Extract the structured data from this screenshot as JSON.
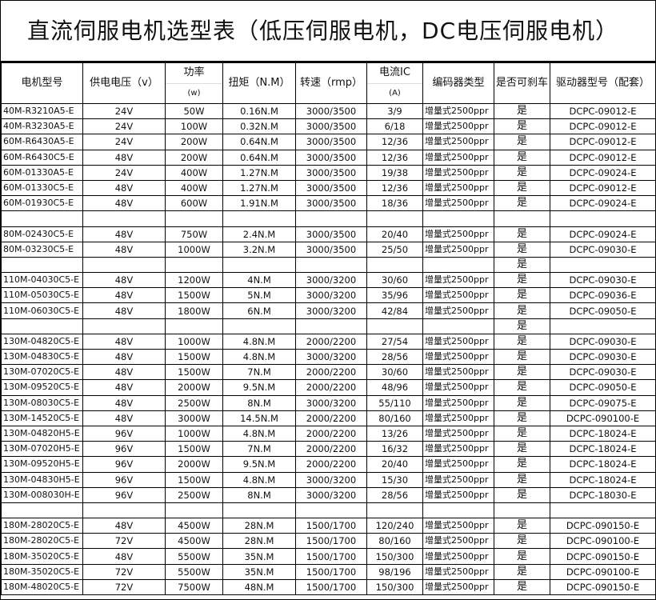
{
  "title": "直流伺服电机选型表（低压伺服电机，DC电压伺服电机）",
  "headers": {
    "model": "电机型号",
    "voltage": "供电电压（v）",
    "power": "功率",
    "power_unit": "(w)",
    "torque": "扭矩（N.M）",
    "speed": "转速（rmp）",
    "current": "电流IC",
    "current_unit": "(A)",
    "encoder": "编码器类型",
    "brake": "是否可刹车",
    "driver": "驱动器型号（配套）"
  },
  "rows": [
    [
      "40M-R3210A5-E",
      "24V",
      "50W",
      "0.16N.M",
      "3000/3500",
      "3/9",
      "增量式2500ppr",
      "是",
      "DCPC-09012-E"
    ],
    [
      "40M-R3230A5-E",
      "24V",
      "100W",
      "0.32N.M",
      "3000/3500",
      "6/18",
      "增量式2500ppr",
      "是",
      "DCPC-09012-E"
    ],
    [
      "60M-R6430A5-E",
      "24V",
      "200W",
      "0.64N.M",
      "3000/3500",
      "12/36",
      "增量式2500ppr",
      "是",
      "DCPC-09012-E"
    ],
    [
      "60M-R6430C5-E",
      "48V",
      "200W",
      "0.64N.M",
      "3000/3500",
      "12/36",
      "增量式2500ppr",
      "是",
      "DCPC-09012-E"
    ],
    [
      "60M-01330A5-E",
      "24V",
      "400W",
      "1.27N.M",
      "3000/3500",
      "19/38",
      "增量式2500ppr",
      "是",
      "DCPC-09024-E"
    ],
    [
      "60M-01330C5-E",
      "48V",
      "400W",
      "1.27N.M",
      "3000/3500",
      "12/36",
      "增量式2500ppr",
      "是",
      "DCPC-09012-E"
    ],
    [
      "60M-01930C5-E",
      "48V",
      "600W",
      "1.91N.M",
      "3000/3500",
      "18/36",
      "增量式2500ppr",
      "是",
      "DCPC-09024-E"
    ],
    [
      "",
      "",
      "",
      "",
      "",
      "",
      "",
      "",
      ""
    ],
    [
      "80M-02430C5-E",
      "48V",
      "750W",
      "2.4N.M",
      "3000/3500",
      "20/40",
      "增量式2500ppr",
      "是",
      "DCPC-09024-E"
    ],
    [
      "80M-03230C5-E",
      "48V",
      "1000W",
      "3.2N.M",
      "3000/3500",
      "25/50",
      "增量式2500ppr",
      "是",
      "DCPC-09030-E"
    ],
    [
      "",
      "",
      "",
      "",
      "",
      "",
      "",
      "是",
      ""
    ],
    [
      "110M-04030C5-E",
      "48V",
      "1200W",
      "4N.M",
      "3000/3200",
      "30/60",
      "增量式2500ppr",
      "是",
      "DCPC-09030-E"
    ],
    [
      "110M-05030C5-E",
      "48V",
      "1500W",
      "5N.M",
      "3000/3200",
      "35/96",
      "增量式2500ppr",
      "是",
      "DCPC-09036-E"
    ],
    [
      "110M-06030C5-E",
      "48V",
      "1800W",
      "6N.M",
      "3000/3200",
      "42/84",
      "增量式2500ppr",
      "是",
      "DCPC-09050-E"
    ],
    [
      "",
      "",
      "",
      "",
      "",
      "",
      "",
      "是",
      ""
    ],
    [
      "130M-04820C5-E",
      "48V",
      "1000W",
      "4.8N.M",
      "2000/2200",
      "27/54",
      "增量式2500ppr",
      "是",
      "DCPC-09030-E"
    ],
    [
      "130M-04830C5-E",
      "48V",
      "1500W",
      "4.8N.M",
      "3000/3200",
      "28/56",
      "增量式2500ppr",
      "是",
      "DCPC-09030-E"
    ],
    [
      "130M-07020C5-E",
      "48V",
      "1500W",
      "7N.M",
      "2000/2200",
      "30/60",
      "增量式2500ppr",
      "是",
      "DCPC-09030-E"
    ],
    [
      "130M-09520C5-E",
      "48V",
      "2000W",
      "9.5N.M",
      "2000/2200",
      "48/96",
      "增量式2500ppr",
      "是",
      "DCPC-09050-E"
    ],
    [
      "130M-08030C5-E",
      "48V",
      "2500W",
      "8N.M",
      "3000/3200",
      "55/110",
      "增量式2500ppr",
      "是",
      "DCPC-09075-E"
    ],
    [
      "130M-14520C5-E",
      "48V",
      "3000W",
      "14.5N.M",
      "2000/2200",
      "80/160",
      "增量式2500ppr",
      "是",
      "DCPC-090100-E"
    ],
    [
      "130M-04820H5-E",
      "96V",
      "1000W",
      "4.8N.M",
      "2000/2200",
      "13/26",
      "增量式2500ppr",
      "是",
      "DCPC-18024-E"
    ],
    [
      "130M-07020H5-E",
      "96V",
      "1500W",
      "7N.M",
      "2000/2200",
      "16/32",
      "增量式2500ppr",
      "是",
      "DCPC-18024-E"
    ],
    [
      "130M-09520H5-E",
      "96V",
      "2000W",
      "9.5N.M",
      "2000/2200",
      "20/40",
      "增量式2500ppr",
      "是",
      "DCPC-18024-E"
    ],
    [
      "130M-04830H5-E",
      "96V",
      "1500W",
      "4.8N.M",
      "3000/3200",
      "15/30",
      "增量式2500ppr",
      "是",
      "DCPC-18024-E"
    ],
    [
      "130M-008030H-E",
      "96V",
      "2500W",
      "8N.M",
      "3000/3200",
      "28/56",
      "增量式2500ppr",
      "是",
      "DCPC-18030-E"
    ],
    [
      "",
      "",
      "",
      "",
      "",
      "",
      "",
      "",
      ""
    ],
    [
      "180M-28020C5-E",
      "48V",
      "4500W",
      "28N.M",
      "1500/1700",
      "120/240",
      "增量式2500ppr",
      "是",
      "DCPC-090150-E"
    ],
    [
      "180M-28020C5-E",
      "72V",
      "4500W",
      "28N.M",
      "1500/1700",
      "80/160",
      "增量式2500ppr",
      "是",
      "DCPC-090100-E"
    ],
    [
      "180M-35020C5-E",
      "48V",
      "5500W",
      "35N.M",
      "1500/1700",
      "150/300",
      "增量式2500ppr",
      "是",
      "DCPC-090150-E"
    ],
    [
      "180M-35020C5-E",
      "72V",
      "5500W",
      "35N.M",
      "1500/1700",
      "98/196",
      "增量式2500ppr",
      "是",
      "DCPC-090100-E"
    ],
    [
      "180M-48020C5-E",
      "72V",
      "7500W",
      "48N.M",
      "1500/1700",
      "150/300",
      "增量式2500ppr",
      "是",
      "DCPC-090150-E"
    ]
  ]
}
